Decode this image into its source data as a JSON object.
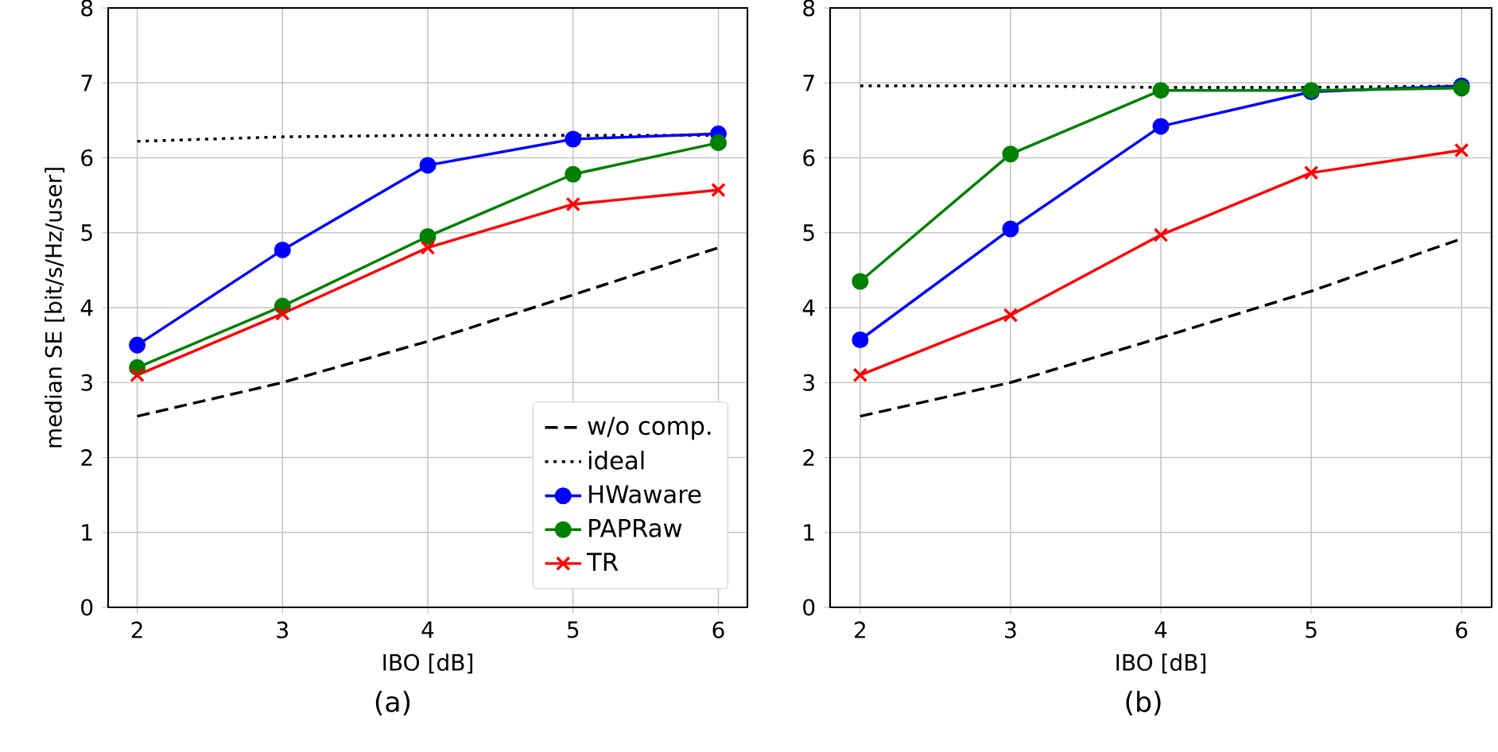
{
  "chart_data": [
    {
      "type": "line",
      "xlabel": "IBO [dB]",
      "ylabel": "median SE [bit/s/Hz/user]",
      "annotations": [
        "(a)"
      ],
      "x": [
        2,
        3,
        4,
        5,
        6
      ],
      "xlim": [
        1.8,
        6.2
      ],
      "xticks": [
        2,
        3,
        4,
        5,
        6
      ],
      "ylim": [
        0,
        8
      ],
      "yticks": [
        0,
        1,
        2,
        3,
        4,
        5,
        6,
        7,
        8
      ],
      "grid": true,
      "legend": "bottom right",
      "series": [
        {
          "name": "w/o comp.",
          "color": "#000000",
          "line_style": "dashed",
          "marker": "none",
          "values": [
            2.55,
            3.0,
            3.55,
            4.17,
            4.8
          ]
        },
        {
          "name": "ideal",
          "color": "#000000",
          "line_style": "dotted",
          "marker": "none",
          "values": [
            6.22,
            6.28,
            6.3,
            6.3,
            6.3
          ]
        },
        {
          "name": "HWaware",
          "color": "#0000ff",
          "line_style": "solid",
          "marker": "circle",
          "values": [
            3.5,
            4.77,
            5.9,
            6.25,
            6.32
          ]
        },
        {
          "name": "PAPRaw",
          "color": "#008000",
          "line_style": "solid",
          "marker": "circle",
          "values": [
            3.2,
            4.02,
            4.95,
            5.78,
            6.2
          ]
        },
        {
          "name": "TR",
          "color": "#ff0000",
          "line_style": "solid",
          "marker": "cross",
          "values": [
            3.1,
            3.92,
            4.8,
            5.38,
            5.57
          ]
        }
      ]
    },
    {
      "type": "line",
      "xlabel": "IBO [dB]",
      "annotations": [
        "(b)"
      ],
      "x": [
        2,
        3,
        4,
        5,
        6
      ],
      "xlim": [
        1.8,
        6.2
      ],
      "xticks": [
        2,
        3,
        4,
        5,
        6
      ],
      "ylim": [
        0,
        8
      ],
      "yticks": [
        0,
        1,
        2,
        3,
        4,
        5,
        6,
        7,
        8
      ],
      "grid": true,
      "series": [
        {
          "color": "#000000",
          "line_style": "dashed",
          "marker": "none",
          "values": [
            2.55,
            3.0,
            3.6,
            4.22,
            4.92
          ]
        },
        {
          "color": "#000000",
          "line_style": "dotted",
          "marker": "none",
          "values": [
            6.96,
            6.96,
            6.94,
            6.94,
            6.96
          ]
        },
        {
          "color": "#0000ff",
          "line_style": "solid",
          "marker": "circle",
          "values": [
            3.57,
            5.05,
            6.42,
            6.88,
            6.96
          ]
        },
        {
          "color": "#008000",
          "line_style": "solid",
          "marker": "circle",
          "values": [
            4.35,
            6.05,
            6.9,
            6.9,
            6.93
          ]
        },
        {
          "color": "#ff0000",
          "line_style": "solid",
          "marker": "cross",
          "values": [
            3.1,
            3.9,
            4.97,
            5.8,
            6.1
          ]
        }
      ]
    }
  ]
}
